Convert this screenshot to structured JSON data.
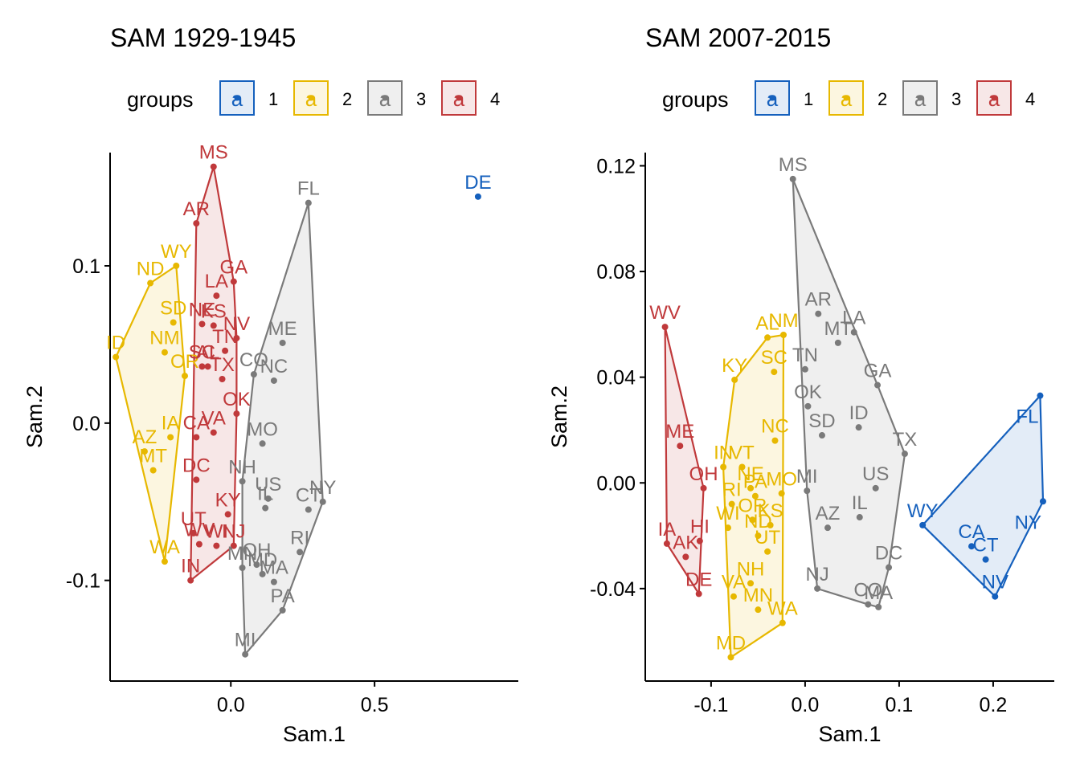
{
  "legend_title": "groups",
  "legend_key_glyph": "a",
  "colors": {
    "1": "#1560BD",
    "2": "#E7B800",
    "3": "#7A7A7A",
    "4": "#C0393B"
  },
  "chart_data": [
    {
      "type": "scatter",
      "title": "SAM 1929-1945",
      "xlabel": "Sam.1",
      "ylabel": "Sam.2",
      "xlim": [
        -0.42,
        1.0
      ],
      "ylim": [
        -0.164,
        0.172
      ],
      "xticks": [
        0.0,
        0.5
      ],
      "xtick_labels": [
        "0.0",
        "0.5"
      ],
      "yticks": [
        0.1,
        0.0,
        -0.1
      ],
      "ytick_labels": [
        "0.1",
        "0.0",
        "-0.1"
      ],
      "groups": [
        "1",
        "2",
        "3",
        "4"
      ],
      "legend_position": "top",
      "hull_style": "convex",
      "points": [
        {
          "label": "DE",
          "group": "1",
          "x": 0.86,
          "y": 0.144
        },
        {
          "label": "WY",
          "group": "2",
          "x": -0.19,
          "y": 0.1
        },
        {
          "label": "ND",
          "group": "2",
          "x": -0.28,
          "y": 0.089
        },
        {
          "label": "SD",
          "group": "2",
          "x": -0.2,
          "y": 0.064
        },
        {
          "label": "NM",
          "group": "2",
          "x": -0.23,
          "y": 0.045
        },
        {
          "label": "ID",
          "group": "2",
          "x": -0.4,
          "y": 0.042
        },
        {
          "label": "OR",
          "group": "2",
          "x": -0.16,
          "y": 0.03
        },
        {
          "label": "IA",
          "group": "2",
          "x": -0.21,
          "y": -0.009
        },
        {
          "label": "AZ",
          "group": "2",
          "x": -0.3,
          "y": -0.018
        },
        {
          "label": "MT",
          "group": "2",
          "x": -0.27,
          "y": -0.03
        },
        {
          "label": "WA",
          "group": "2",
          "x": -0.23,
          "y": -0.088
        },
        {
          "label": "MS",
          "group": "4",
          "x": -0.06,
          "y": 0.163
        },
        {
          "label": "AR",
          "group": "4",
          "x": -0.12,
          "y": 0.127
        },
        {
          "label": "GA",
          "group": "4",
          "x": 0.01,
          "y": 0.09
        },
        {
          "label": "LA",
          "group": "4",
          "x": -0.05,
          "y": 0.081
        },
        {
          "label": "KS",
          "group": "4",
          "x": -0.06,
          "y": 0.062
        },
        {
          "label": "NE",
          "group": "4",
          "x": -0.1,
          "y": 0.063
        },
        {
          "label": "NV",
          "group": "4",
          "x": 0.02,
          "y": 0.054
        },
        {
          "label": "SC",
          "group": "4",
          "x": -0.1,
          "y": 0.036
        },
        {
          "label": "TN",
          "group": "4",
          "x": -0.02,
          "y": 0.046
        },
        {
          "label": "AL",
          "group": "4",
          "x": -0.08,
          "y": 0.036
        },
        {
          "label": "TX",
          "group": "4",
          "x": -0.03,
          "y": 0.028
        },
        {
          "label": "OK",
          "group": "4",
          "x": 0.02,
          "y": 0.006
        },
        {
          "label": "VA",
          "group": "4",
          "x": -0.06,
          "y": -0.006
        },
        {
          "label": "CA",
          "group": "4",
          "x": -0.12,
          "y": -0.009
        },
        {
          "label": "DC",
          "group": "4",
          "x": -0.12,
          "y": -0.036
        },
        {
          "label": "KY",
          "group": "4",
          "x": -0.01,
          "y": -0.058
        },
        {
          "label": "WV",
          "group": "4",
          "x": -0.11,
          "y": -0.077
        },
        {
          "label": "WI",
          "group": "4",
          "x": -0.05,
          "y": -0.078
        },
        {
          "label": "NJ",
          "group": "4",
          "x": 0.01,
          "y": -0.078
        },
        {
          "label": "IN",
          "group": "4",
          "x": -0.14,
          "y": -0.1
        },
        {
          "label": "UT",
          "group": "4",
          "x": -0.13,
          "y": -0.07
        },
        {
          "label": "FL",
          "group": "3",
          "x": 0.27,
          "y": 0.14
        },
        {
          "label": "ME",
          "group": "3",
          "x": 0.18,
          "y": 0.051
        },
        {
          "label": "CO",
          "group": "3",
          "x": 0.08,
          "y": 0.031
        },
        {
          "label": "NC",
          "group": "3",
          "x": 0.15,
          "y": 0.027
        },
        {
          "label": "MO",
          "group": "3",
          "x": 0.11,
          "y": -0.013
        },
        {
          "label": "NH",
          "group": "3",
          "x": 0.04,
          "y": -0.037
        },
        {
          "label": "US",
          "group": "3",
          "x": 0.13,
          "y": -0.048
        },
        {
          "label": "IL",
          "group": "3",
          "x": 0.12,
          "y": -0.054
        },
        {
          "label": "NY",
          "group": "3",
          "x": 0.32,
          "y": -0.05
        },
        {
          "label": "CT",
          "group": "3",
          "x": 0.27,
          "y": -0.055
        },
        {
          "label": "OH",
          "group": "3",
          "x": 0.09,
          "y": -0.09
        },
        {
          "label": "RI",
          "group": "3",
          "x": 0.24,
          "y": -0.082
        },
        {
          "label": "MN",
          "group": "3",
          "x": 0.04,
          "y": -0.092
        },
        {
          "label": "MA",
          "group": "3",
          "x": 0.15,
          "y": -0.101
        },
        {
          "label": "MD",
          "group": "3",
          "x": 0.11,
          "y": -0.096
        },
        {
          "label": "PA",
          "group": "3",
          "x": 0.18,
          "y": -0.119
        },
        {
          "label": "MI",
          "group": "3",
          "x": 0.05,
          "y": -0.147
        }
      ]
    },
    {
      "type": "scatter",
      "title": "SAM 2007-2015",
      "xlabel": "Sam.1",
      "ylabel": "Sam.2",
      "xlim": [
        -0.17,
        0.265
      ],
      "ylim": [
        -0.075,
        0.125
      ],
      "xticks": [
        -0.1,
        0.0,
        0.1,
        0.2
      ],
      "xtick_labels": [
        "-0.1",
        "0.0",
        "0.1",
        "0.2"
      ],
      "yticks": [
        0.12,
        0.08,
        0.04,
        0.0,
        -0.04
      ],
      "ytick_labels": [
        "0.12",
        "0.08",
        "0.04",
        "0.00",
        "-0.04"
      ],
      "groups": [
        "1",
        "2",
        "3",
        "4"
      ],
      "legend_position": "top",
      "hull_style": "convex",
      "points": [
        {
          "label": "FL",
          "group": "1",
          "x": 0.25,
          "y": 0.033
        },
        {
          "label": "NY",
          "group": "1",
          "x": 0.253,
          "y": -0.007
        },
        {
          "label": "WY",
          "group": "1",
          "x": 0.125,
          "y": -0.016
        },
        {
          "label": "CA",
          "group": "1",
          "x": 0.177,
          "y": -0.024
        },
        {
          "label": "CT",
          "group": "1",
          "x": 0.192,
          "y": -0.029
        },
        {
          "label": "NV",
          "group": "1",
          "x": 0.202,
          "y": -0.043
        },
        {
          "label": "WV",
          "group": "4",
          "x": -0.149,
          "y": 0.059
        },
        {
          "label": "ME",
          "group": "4",
          "x": -0.133,
          "y": 0.014
        },
        {
          "label": "OH",
          "group": "4",
          "x": -0.108,
          "y": -0.002
        },
        {
          "label": "HI",
          "group": "4",
          "x": -0.112,
          "y": -0.022
        },
        {
          "label": "IA",
          "group": "4",
          "x": -0.147,
          "y": -0.023
        },
        {
          "label": "AK",
          "group": "4",
          "x": -0.127,
          "y": -0.028
        },
        {
          "label": "DE",
          "group": "4",
          "x": -0.113,
          "y": -0.042
        },
        {
          "label": "AL",
          "group": "2",
          "x": -0.04,
          "y": 0.055
        },
        {
          "label": "NM",
          "group": "2",
          "x": -0.023,
          "y": 0.056
        },
        {
          "label": "SC",
          "group": "2",
          "x": -0.033,
          "y": 0.042
        },
        {
          "label": "KY",
          "group": "2",
          "x": -0.075,
          "y": 0.039
        },
        {
          "label": "IN",
          "group": "2",
          "x": -0.087,
          "y": 0.006
        },
        {
          "label": "NC",
          "group": "2",
          "x": -0.032,
          "y": 0.016
        },
        {
          "label": "VT",
          "group": "2",
          "x": -0.067,
          "y": 0.006
        },
        {
          "label": "NE",
          "group": "2",
          "x": -0.058,
          "y": -0.002
        },
        {
          "label": "PA",
          "group": "2",
          "x": -0.053,
          "y": -0.005
        },
        {
          "label": "MO",
          "group": "2",
          "x": -0.025,
          "y": -0.004
        },
        {
          "label": "RI",
          "group": "2",
          "x": -0.078,
          "y": -0.008
        },
        {
          "label": "OR",
          "group": "2",
          "x": -0.056,
          "y": -0.014
        },
        {
          "label": "KS",
          "group": "2",
          "x": -0.037,
          "y": -0.016
        },
        {
          "label": "WI",
          "group": "2",
          "x": -0.082,
          "y": -0.017
        },
        {
          "label": "ND",
          "group": "2",
          "x": -0.05,
          "y": -0.02
        },
        {
          "label": "UT",
          "group": "2",
          "x": -0.04,
          "y": -0.026
        },
        {
          "label": "NH",
          "group": "2",
          "x": -0.058,
          "y": -0.038
        },
        {
          "label": "VA",
          "group": "2",
          "x": -0.076,
          "y": -0.043
        },
        {
          "label": "MN",
          "group": "2",
          "x": -0.05,
          "y": -0.048
        },
        {
          "label": "WA",
          "group": "2",
          "x": -0.024,
          "y": -0.053
        },
        {
          "label": "MD",
          "group": "2",
          "x": -0.079,
          "y": -0.066
        },
        {
          "label": "MS",
          "group": "3",
          "x": -0.013,
          "y": 0.115
        },
        {
          "label": "AR",
          "group": "3",
          "x": 0.014,
          "y": 0.064
        },
        {
          "label": "LA",
          "group": "3",
          "x": 0.052,
          "y": 0.057
        },
        {
          "label": "MT",
          "group": "3",
          "x": 0.035,
          "y": 0.053
        },
        {
          "label": "TN",
          "group": "3",
          "x": 0.0,
          "y": 0.043
        },
        {
          "label": "GA",
          "group": "3",
          "x": 0.077,
          "y": 0.037
        },
        {
          "label": "OK",
          "group": "3",
          "x": 0.003,
          "y": 0.029
        },
        {
          "label": "ID",
          "group": "3",
          "x": 0.057,
          "y": 0.021
        },
        {
          "label": "SD",
          "group": "3",
          "x": 0.018,
          "y": 0.018
        },
        {
          "label": "TX",
          "group": "3",
          "x": 0.106,
          "y": 0.011
        },
        {
          "label": "US",
          "group": "3",
          "x": 0.075,
          "y": -0.002
        },
        {
          "label": "MI",
          "group": "3",
          "x": 0.002,
          "y": -0.003
        },
        {
          "label": "IL",
          "group": "3",
          "x": 0.058,
          "y": -0.013
        },
        {
          "label": "AZ",
          "group": "3",
          "x": 0.024,
          "y": -0.017
        },
        {
          "label": "DC",
          "group": "3",
          "x": 0.089,
          "y": -0.032
        },
        {
          "label": "NJ",
          "group": "3",
          "x": 0.013,
          "y": -0.04
        },
        {
          "label": "CO",
          "group": "3",
          "x": 0.067,
          "y": -0.046
        },
        {
          "label": "MA",
          "group": "3",
          "x": 0.078,
          "y": -0.047
        }
      ]
    }
  ]
}
